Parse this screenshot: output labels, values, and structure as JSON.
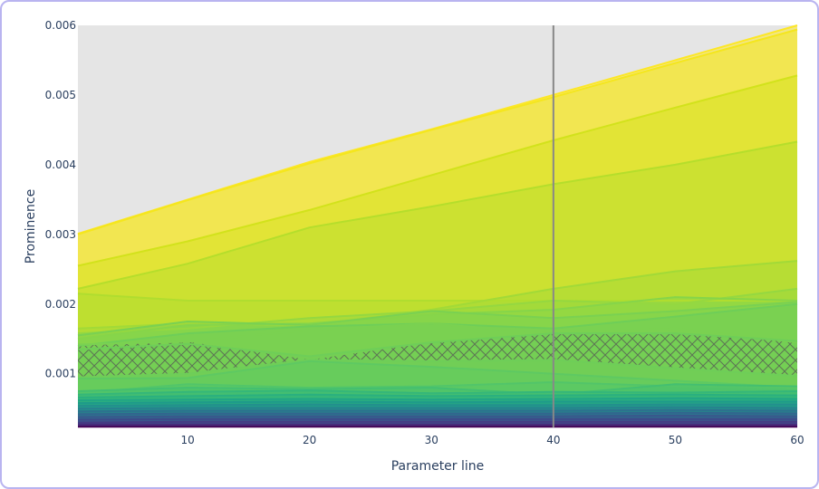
{
  "chart_data": {
    "type": "area",
    "xlabel": "Parameter line",
    "ylabel": "Prominence",
    "xlim": [
      1,
      60
    ],
    "ylim": [
      0.00023,
      0.006
    ],
    "x_ticks": [
      10,
      20,
      30,
      40,
      50,
      60
    ],
    "x_tick_labels": [
      "10",
      "20",
      "30",
      "40",
      "50",
      "60"
    ],
    "y_ticks": [
      0.001,
      0.002,
      0.003,
      0.004,
      0.005,
      0.006
    ],
    "y_tick_labels": [
      "0.001",
      "0.002",
      "0.003",
      "0.004",
      "0.005",
      "0.006"
    ],
    "vertical_marker_x": 40,
    "grid": false,
    "plot_background": "#e5e5e5",
    "marker_color": "#888888",
    "colorscale": "viridis",
    "x": [
      1,
      10,
      20,
      30,
      40,
      50,
      60
    ],
    "series": [
      {
        "values": [
          0.00301,
          0.0035,
          0.00404,
          0.00451,
          0.005,
          0.0055,
          0.006
        ],
        "color": "#fde725"
      },
      {
        "values": [
          0.003,
          0.00349,
          0.00402,
          0.0045,
          0.00497,
          0.00546,
          0.00594
        ],
        "color": "#f4e61e"
      },
      {
        "values": [
          0.00255,
          0.0029,
          0.00335,
          0.00385,
          0.00435,
          0.00482,
          0.00528
        ],
        "color": "#d2e21b"
      },
      {
        "values": [
          0.00222,
          0.00258,
          0.0031,
          0.0034,
          0.00372,
          0.004,
          0.00433
        ],
        "color": "#b5de2b"
      },
      {
        "values": [
          0.00215,
          0.00205,
          0.00205,
          0.00205,
          0.00205,
          0.00205,
          0.00205
        ],
        "color": "#b0dd2f"
      },
      {
        "values": [
          0.00165,
          0.00172,
          0.0017,
          0.00192,
          0.00222,
          0.00247,
          0.00262
        ],
        "color": "#a2da37"
      },
      {
        "values": [
          0.00158,
          0.00165,
          0.0018,
          0.0019,
          0.00205,
          0.002,
          0.00222
        ],
        "color": "#95d840"
      },
      {
        "values": [
          0.0015,
          0.0017,
          0.00172,
          0.00185,
          0.00192,
          0.0021,
          0.00205
        ],
        "color": "#86d549"
      },
      {
        "values": [
          0.00155,
          0.00175,
          0.0017,
          0.0019,
          0.0018,
          0.0019,
          0.00203
        ],
        "color": "#7ad151"
      },
      {
        "values": [
          0.0014,
          0.00158,
          0.00168,
          0.00172,
          0.00165,
          0.00182,
          0.002
        ],
        "color": "#6ece58"
      },
      {
        "values": [
          0.00142,
          0.00146,
          0.00163,
          0.00172,
          0.00158,
          0.00165,
          0.00145
        ],
        "color": "#7ad151"
      },
      {
        "values": [
          0.00135,
          0.00143,
          0.00125,
          0.00145,
          0.00158,
          0.00158,
          0.00147
        ],
        "color": "#6ece58"
      },
      {
        "values": [
          0.00095,
          0.001,
          0.0012,
          0.00118,
          0.0012,
          0.00108,
          0.00097
        ],
        "color": "#6ece58"
      },
      {
        "values": [
          0.00093,
          0.00094,
          0.00118,
          0.0011,
          0.001,
          0.0009,
          0.0008
        ],
        "color": "#5ec962"
      },
      {
        "values": [
          0.00072,
          0.00085,
          0.0008,
          0.00082,
          0.00088,
          0.00082,
          0.00078
        ],
        "color": "#52c569"
      },
      {
        "values": [
          0.00075,
          0.0008,
          0.00078,
          0.0008,
          0.0007,
          0.00085,
          0.00082
        ],
        "color": "#44bf70"
      },
      {
        "values": [
          0.0007,
          0.00074,
          0.00076,
          0.00072,
          0.00074,
          0.00073,
          0.00075
        ],
        "color": "#35b779"
      },
      {
        "values": [
          0.00066,
          0.00068,
          0.0007,
          0.00068,
          0.00069,
          0.0007,
          0.00069
        ],
        "color": "#2ab07f"
      },
      {
        "values": [
          0.00062,
          0.00063,
          0.00064,
          0.00063,
          0.00064,
          0.00065,
          0.00064
        ],
        "color": "#21a685"
      },
      {
        "values": [
          0.00058,
          0.00059,
          0.0006,
          0.00059,
          0.0006,
          0.0006,
          0.0006
        ],
        "color": "#1e9b8a"
      },
      {
        "values": [
          0.00054,
          0.00055,
          0.00056,
          0.00055,
          0.00055,
          0.00056,
          0.00056
        ],
        "color": "#22908d"
      },
      {
        "values": [
          0.0005,
          0.00051,
          0.00051,
          0.00051,
          0.00051,
          0.00052,
          0.00051
        ],
        "color": "#26828e"
      },
      {
        "values": [
          0.00046,
          0.00047,
          0.00047,
          0.00047,
          0.00047,
          0.00048,
          0.00047
        ],
        "color": "#2c728e"
      },
      {
        "values": [
          0.00042,
          0.00043,
          0.00043,
          0.00043,
          0.00043,
          0.00044,
          0.00043
        ],
        "color": "#31668e"
      },
      {
        "values": [
          0.00038,
          0.00039,
          0.00039,
          0.00039,
          0.00039,
          0.0004,
          0.00039
        ],
        "color": "#38588c"
      },
      {
        "values": [
          0.00034,
          0.00035,
          0.00035,
          0.00035,
          0.00035,
          0.00035,
          0.00035
        ],
        "color": "#3e4989"
      },
      {
        "values": [
          0.0003,
          0.00031,
          0.00031,
          0.00031,
          0.00031,
          0.00031,
          0.00031
        ],
        "color": "#443a83"
      },
      {
        "values": [
          0.00027,
          0.00027,
          0.00027,
          0.00027,
          0.00027,
          0.00027,
          0.00027
        ],
        "color": "#472a7a"
      },
      {
        "values": [
          0.00024,
          0.00024,
          0.00024,
          0.00024,
          0.00024,
          0.00024,
          0.00024
        ],
        "color": "#440154"
      }
    ],
    "hatched_bands": [
      {
        "upper": [
          0.00142,
          0.00146,
          0.0012,
          0.00145,
          0.00158,
          0.00158,
          0.00147
        ],
        "lower": [
          0.00095,
          0.001,
          0.0012,
          0.00118,
          0.0012,
          0.00108,
          0.00097
        ]
      }
    ]
  }
}
